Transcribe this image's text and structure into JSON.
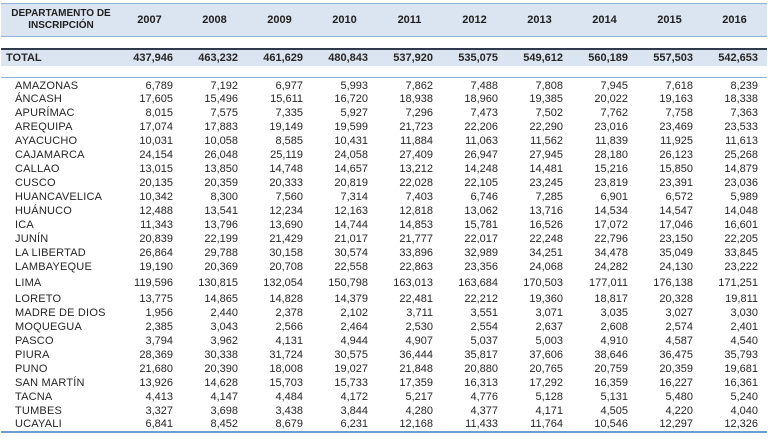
{
  "table": {
    "title": "DEPARTAMENTO DE INSCRIPCIÓN",
    "header": {
      "label_line1": "DEPARTAMENTO DE",
      "label_line2": "INSCRIPCIÓN",
      "years": [
        "2007",
        "2008",
        "2009",
        "2010",
        "2011",
        "2012",
        "2013",
        "2014",
        "2015",
        "2016"
      ]
    },
    "total_row": {
      "label": "TOTAL",
      "values": [
        "437,946",
        "463,232",
        "461,629",
        "480,843",
        "537,920",
        "535,075",
        "549,612",
        "560,189",
        "557,503",
        "542,653"
      ]
    },
    "rows": [
      {
        "label": "AMAZONAS",
        "values": [
          "6,789",
          "7,192",
          "6,977",
          "5,993",
          "7,862",
          "7,488",
          "7,808",
          "7,945",
          "7,618",
          "8,239"
        ]
      },
      {
        "label": "ÁNCASH",
        "values": [
          "17,605",
          "15,496",
          "15,611",
          "16,720",
          "18,938",
          "18,960",
          "19,385",
          "20,022",
          "19,163",
          "18,338"
        ]
      },
      {
        "label": "APURÍMAC",
        "values": [
          "8,015",
          "7,575",
          "7,335",
          "5,927",
          "7,296",
          "7,473",
          "7,502",
          "7,762",
          "7,758",
          "7,363"
        ]
      },
      {
        "label": "AREQUIPA",
        "values": [
          "17,074",
          "17,883",
          "19,149",
          "19,599",
          "21,723",
          "22,206",
          "22,290",
          "23,016",
          "23,469",
          "23,533"
        ]
      },
      {
        "label": "AYACUCHO",
        "values": [
          "10,031",
          "10,058",
          "8,585",
          "10,431",
          "11,884",
          "11,063",
          "11,562",
          "11,839",
          "11,925",
          "11,613"
        ]
      },
      {
        "label": "CAJAMARCA",
        "values": [
          "24,154",
          "26,048",
          "25,119",
          "24,058",
          "27,409",
          "26,947",
          "27,945",
          "28,180",
          "26,123",
          "25,268"
        ]
      },
      {
        "label": "CALLAO",
        "values": [
          "13,015",
          "13,850",
          "14,748",
          "14,657",
          "13,212",
          "14,248",
          "14,481",
          "15,216",
          "15,850",
          "14,879"
        ]
      },
      {
        "label": "CUSCO",
        "values": [
          "20,135",
          "20,359",
          "20,333",
          "20,819",
          "22,028",
          "22,105",
          "23,245",
          "23,819",
          "23,391",
          "23,036"
        ]
      },
      {
        "label": "HUANCAVELICA",
        "values": [
          "10,342",
          "8,300",
          "7,560",
          "7,314",
          "7,403",
          "6,746",
          "7,285",
          "6,901",
          "6,572",
          "5,989"
        ]
      },
      {
        "label": "HUÁNUCO",
        "values": [
          "12,488",
          "13,541",
          "12,234",
          "12,163",
          "12,818",
          "13,062",
          "13,716",
          "14,534",
          "14,547",
          "14,048"
        ]
      },
      {
        "label": "ICA",
        "values": [
          "11,343",
          "13,796",
          "13,690",
          "14,744",
          "14,853",
          "15,781",
          "16,526",
          "17,072",
          "17,046",
          "16,601"
        ]
      },
      {
        "label": "JUNÍN",
        "values": [
          "20,839",
          "22,199",
          "21,429",
          "21,017",
          "21,777",
          "22,017",
          "22,248",
          "22,796",
          "23,150",
          "22,205"
        ]
      },
      {
        "label": "LA LIBERTAD",
        "values": [
          "26,864",
          "29,788",
          "30,158",
          "30,574",
          "33,896",
          "32,989",
          "34,251",
          "34,478",
          "35,049",
          "33,845"
        ]
      },
      {
        "label": "LAMBAYEQUE",
        "values": [
          "19,190",
          "20,369",
          "20,708",
          "22,558",
          "22,863",
          "23,356",
          "24,068",
          "24,282",
          "24,130",
          "23,222"
        ]
      },
      {
        "label": "LIMA",
        "values": [
          "119,596",
          "130,815",
          "132,054",
          "150,798",
          "163,013",
          "163,684",
          "170,503",
          "177,011",
          "176,138",
          "171,251"
        ]
      },
      {
        "label": "LORETO",
        "values": [
          "13,775",
          "14,865",
          "14,828",
          "14,379",
          "22,481",
          "22,212",
          "19,360",
          "18,817",
          "20,328",
          "19,811"
        ]
      },
      {
        "label": "MADRE DE DIOS",
        "values": [
          "1,956",
          "2,440",
          "2,378",
          "2,102",
          "3,711",
          "3,551",
          "3,071",
          "3,035",
          "3,027",
          "3,030"
        ]
      },
      {
        "label": "MOQUEGUA",
        "values": [
          "2,385",
          "3,043",
          "2,566",
          "2,464",
          "2,530",
          "2,554",
          "2,637",
          "2,608",
          "2,574",
          "2,401"
        ]
      },
      {
        "label": "PASCO",
        "values": [
          "3,794",
          "3,962",
          "4,131",
          "4,944",
          "4,907",
          "5,037",
          "5,003",
          "4,910",
          "4,587",
          "4,540"
        ]
      },
      {
        "label": "PIURA",
        "values": [
          "28,369",
          "30,338",
          "31,724",
          "30,575",
          "36,444",
          "35,817",
          "37,606",
          "38,646",
          "36,475",
          "35,793"
        ]
      },
      {
        "label": "PUNO",
        "values": [
          "21,680",
          "20,390",
          "18,008",
          "19,027",
          "21,848",
          "20,880",
          "20,765",
          "20,759",
          "20,359",
          "19,681"
        ]
      },
      {
        "label": "SAN MARTÍN",
        "values": [
          "13,926",
          "14,628",
          "15,703",
          "15,733",
          "17,359",
          "16,313",
          "17,292",
          "16,359",
          "16,227",
          "16,361"
        ]
      },
      {
        "label": "TACNA",
        "values": [
          "4,413",
          "4,147",
          "4,484",
          "4,172",
          "5,217",
          "4,776",
          "5,128",
          "5,131",
          "5,480",
          "5,240"
        ]
      },
      {
        "label": "TUMBES",
        "values": [
          "3,327",
          "3,698",
          "3,438",
          "3,844",
          "4,280",
          "4,377",
          "4,171",
          "4,505",
          "4,220",
          "4,040"
        ]
      },
      {
        "label": "UCAYALI",
        "values": [
          "6,841",
          "8,452",
          "8,679",
          "6,231",
          "12,168",
          "11,433",
          "11,764",
          "10,546",
          "12,297",
          "12,326"
        ]
      }
    ]
  },
  "colors": {
    "band_background": "#dbe5f1",
    "thin_border": "#95b3d7",
    "total_top_border": "#31394d",
    "bottom_border": "#6f9bd3",
    "text": "#262626"
  }
}
